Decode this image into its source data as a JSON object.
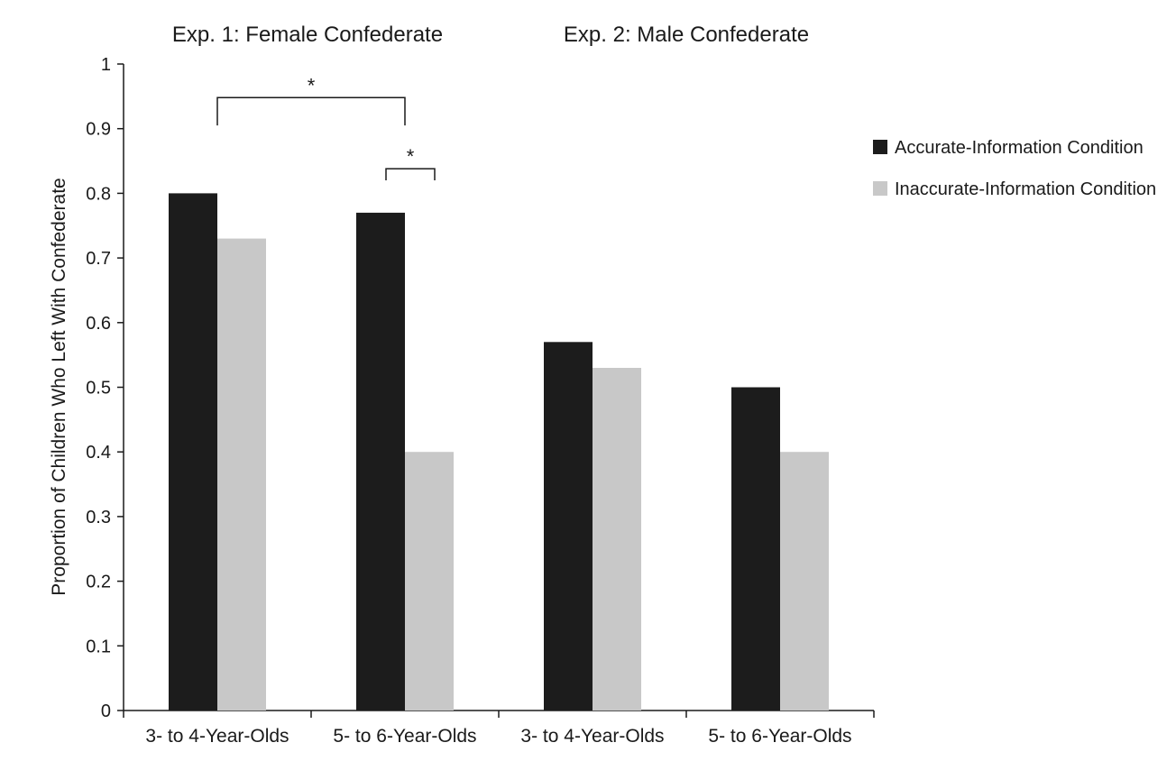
{
  "chart_data": {
    "type": "bar",
    "title": "",
    "xlabel": "",
    "ylabel": "Proportion of Children Who Left With Confederate",
    "ylim": [
      0,
      1
    ],
    "yticks": [
      "0",
      "0.1",
      "0.2",
      "0.3",
      "0.4",
      "0.5",
      "0.6",
      "0.7",
      "0.8",
      "0.9",
      "1"
    ],
    "groups": [
      {
        "title": "Exp. 1: Female Confederate",
        "categories": [
          "3- to 4-Year-Olds",
          "5- to 6-Year-Olds"
        ]
      },
      {
        "title": "Exp. 2: Male Confederate",
        "categories": [
          "3- to 4-Year-Olds",
          "5- to 6-Year-Olds"
        ]
      }
    ],
    "categories": [
      "3- to 4-Year-Olds",
      "5- to 6-Year-Olds",
      "3- to 4-Year-Olds",
      "5- to 6-Year-Olds"
    ],
    "series": [
      {
        "name": "Accurate-Information Condition",
        "color": "#1c1c1c",
        "values": [
          0.8,
          0.77,
          0.57,
          0.5
        ]
      },
      {
        "name": "Inaccurate-Information Condition",
        "color": "#c8c8c8",
        "values": [
          0.73,
          0.4,
          0.53,
          0.4
        ]
      }
    ],
    "legend_position": "top-right",
    "grid": false,
    "significance_markers": [
      {
        "label": "*",
        "between": "3- to 4-Year-Olds accurate vs 5- to 6-Year-Olds accurate (Exp. 1)"
      },
      {
        "label": "*",
        "between": "5- to 6-Year-Olds accurate vs inaccurate (Exp. 1)"
      }
    ]
  }
}
